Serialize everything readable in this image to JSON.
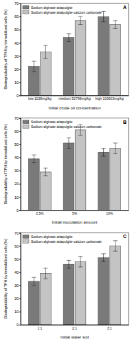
{
  "chart_data": [
    {
      "type": "bar",
      "annotation": "A",
      "x_label": "Initial crude oil concentration",
      "y_label": "Biodegradability of TPH by immobilized cells (%)",
      "categories": [
        "low 1038mg/kg",
        "medium 53798mg/kg",
        "high 103603mg/kg"
      ],
      "series": [
        {
          "name": "Sodium alginate-attapulgite",
          "color": "#7a7a7a",
          "values": [
            22,
            44,
            60
          ],
          "errors": [
            4,
            3,
            4
          ]
        },
        {
          "name": "Sodium alginate-attapulgite-calcium carbonate",
          "color": "#c4c4c4",
          "values": [
            33,
            57,
            54
          ],
          "errors": [
            5,
            3,
            3
          ]
        }
      ],
      "ylim": [
        0,
        70
      ],
      "yticks": [
        0,
        10,
        20,
        30,
        40,
        50,
        60,
        70
      ],
      "legend": "upper left"
    },
    {
      "type": "bar",
      "annotation": "B",
      "x_label": "Initial inoculation amount",
      "y_label": "Biodegradability of TPH by immobilized cells (%)",
      "categories": [
        "2.5%",
        "5%",
        "10%"
      ],
      "series": [
        {
          "name": "Sodium alginate-attapulgite",
          "color": "#7a7a7a",
          "values": [
            39,
            51,
            44
          ],
          "errors": [
            3,
            4,
            3
          ]
        },
        {
          "name": "Sodium alginate-attapulgite-calcium carbonate",
          "color": "#c4c4c4",
          "values": [
            29,
            61,
            47
          ],
          "errors": [
            3,
            4,
            4
          ]
        }
      ],
      "ylim": [
        0,
        70
      ],
      "yticks": [
        0,
        10,
        20,
        30,
        40,
        50,
        60,
        70
      ],
      "legend": "upper left"
    },
    {
      "type": "bar",
      "annotation": "C",
      "x_label": "Initial water soil",
      "y_label": "Biodegradability of TPH by immobilized cells (%)",
      "categories": [
        "1:1",
        "2:1",
        "3:1"
      ],
      "series": [
        {
          "name": "Sodium alginate-attapulgite",
          "color": "#7a7a7a",
          "values": [
            33,
            46,
            51
          ],
          "errors": [
            3,
            3,
            3
          ]
        },
        {
          "name": "Sodium alginate-attapulgite-calcium carbonate",
          "color": "#c4c4c4",
          "values": [
            39,
            48,
            60
          ],
          "errors": [
            4,
            4,
            4
          ]
        }
      ],
      "ylim": [
        0,
        70
      ],
      "yticks": [
        0,
        10,
        20,
        30,
        40,
        50,
        60,
        70
      ],
      "legend": "upper left"
    }
  ]
}
